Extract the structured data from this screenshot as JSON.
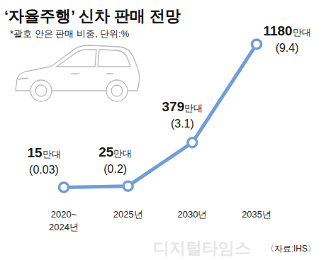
{
  "chart_data": {
    "type": "line",
    "title": "‘자율주행’ 신차 판매 전망",
    "subtitle": "*괄호 안은 판매 비중, 단위:%",
    "source": "〈자료:IHS〉",
    "watermark": "디지털타임스",
    "categories": [
      "2020~\n2024년",
      "2025년",
      "2030년",
      "2035년"
    ],
    "values": [
      15,
      25,
      379,
      1180
    ],
    "value_labels": [
      "15만대",
      "25만대",
      "379만대",
      "1180만대"
    ],
    "share_labels": [
      "(0.03)",
      "(0.2)",
      "(3.1)",
      "(9.4)"
    ],
    "color": "#6f9fd8",
    "marker": "circle",
    "line_style": "solid",
    "ylim": [
      0,
      1300
    ],
    "data_labels": true,
    "tick_labels": "x",
    "grid": false
  }
}
